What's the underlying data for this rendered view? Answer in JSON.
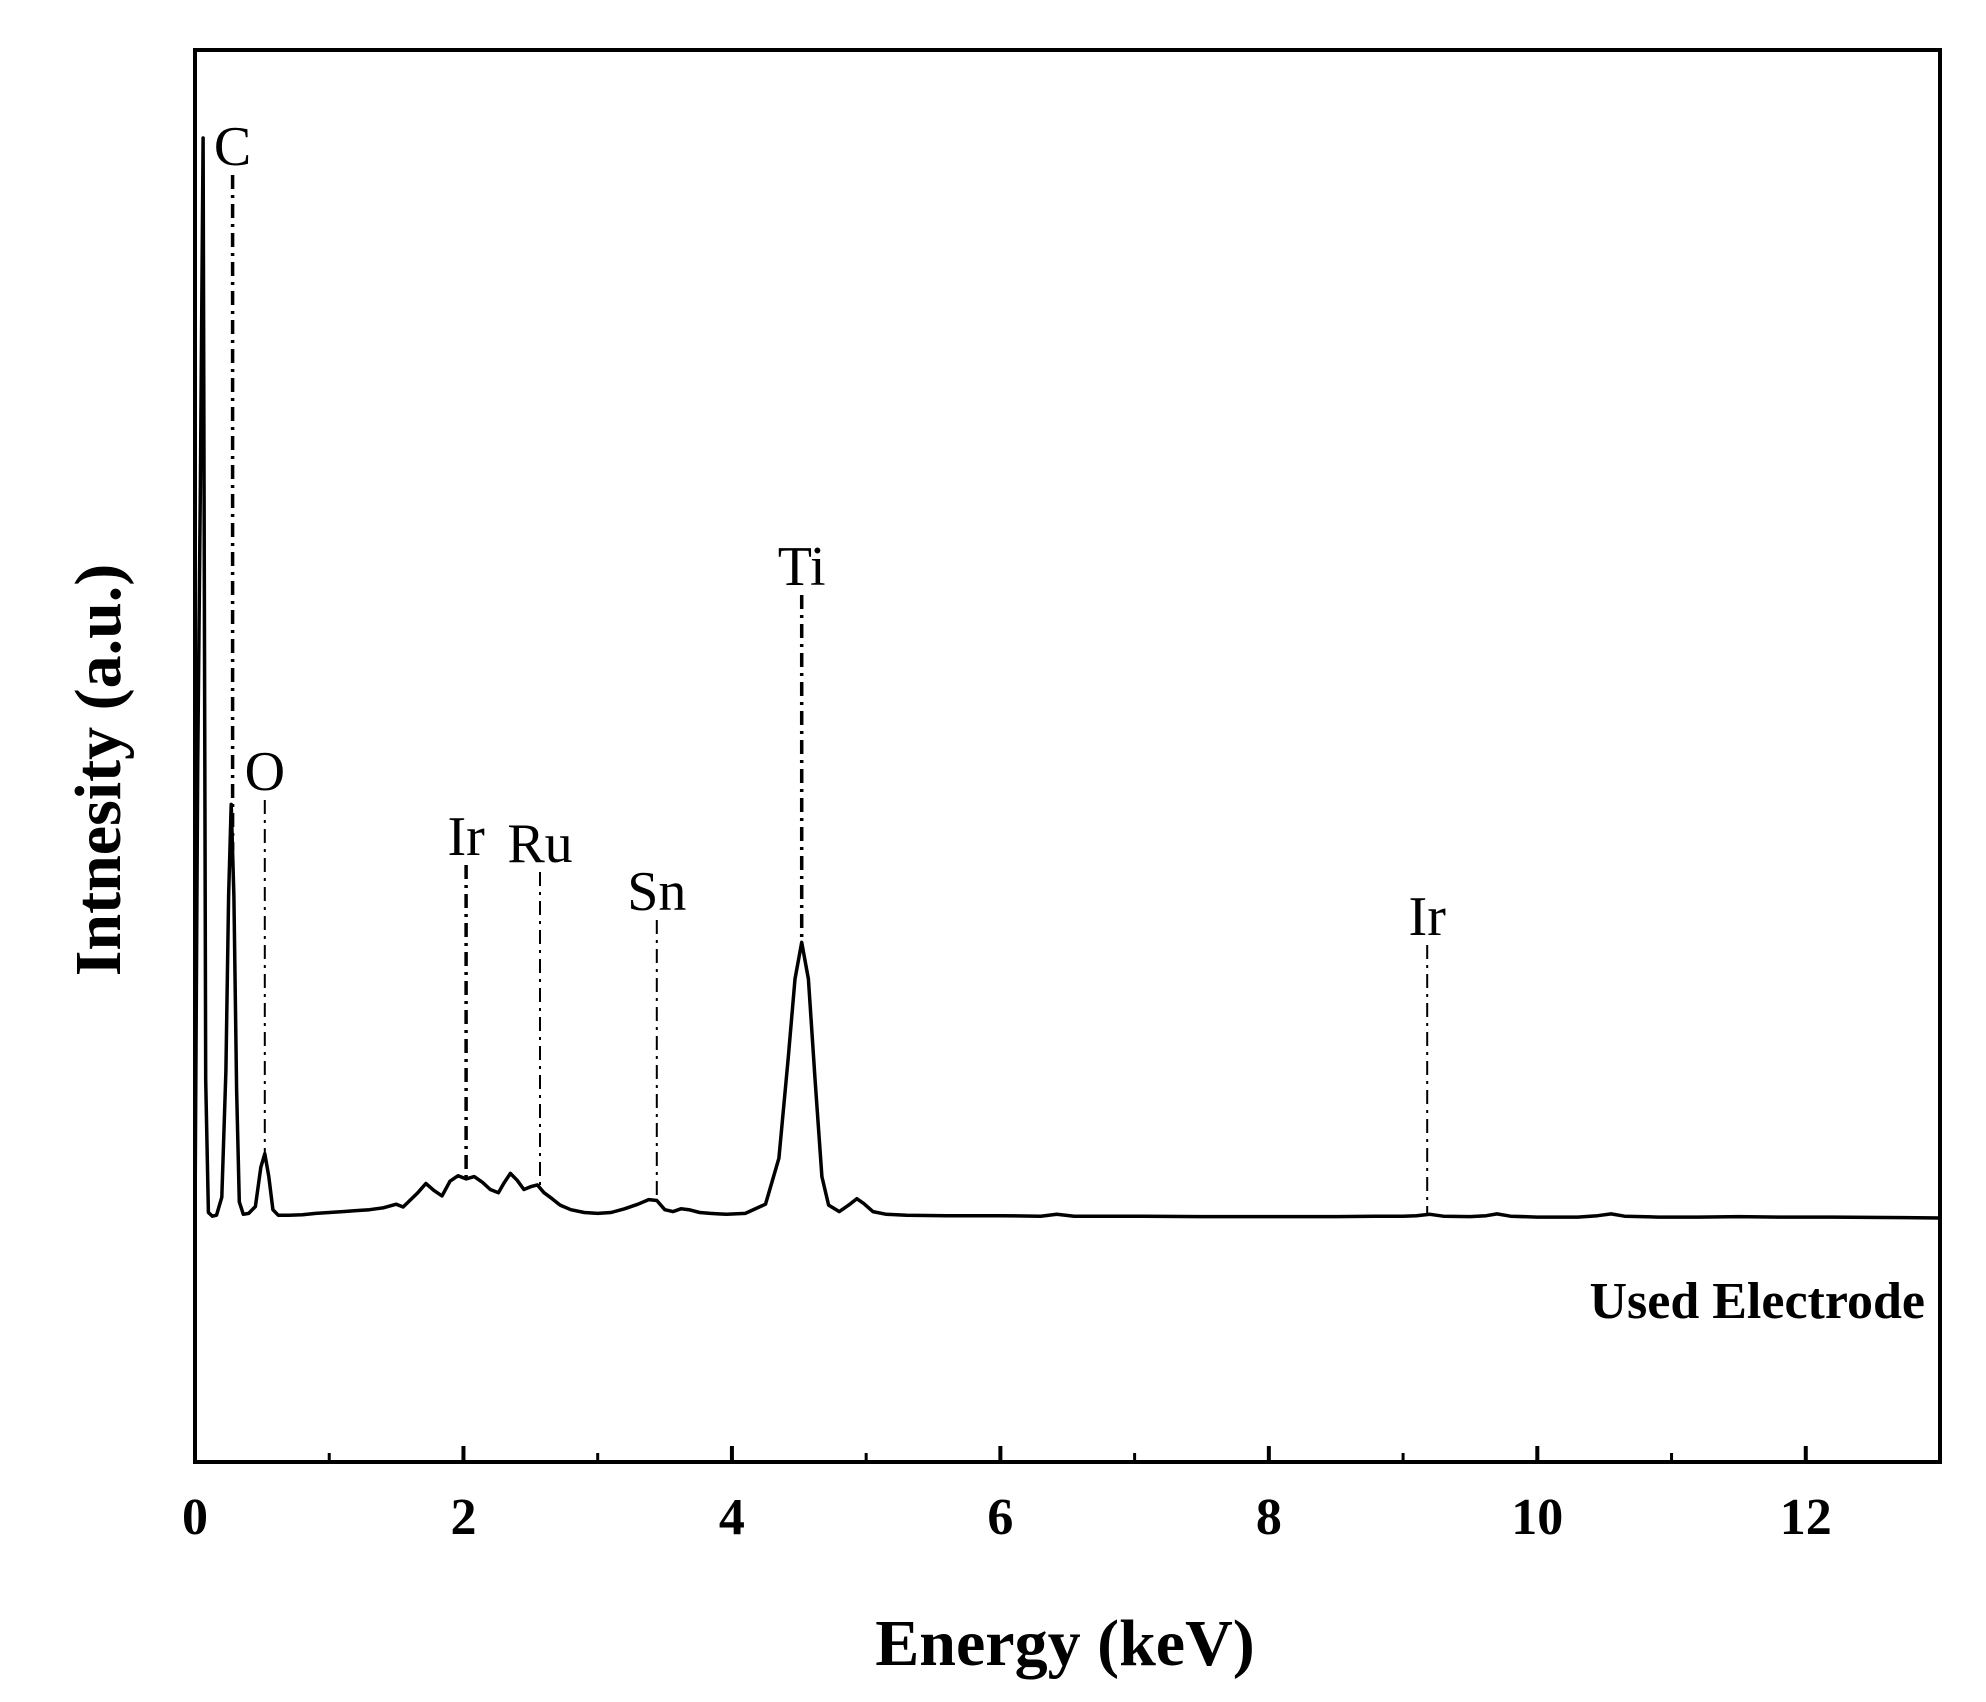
{
  "chart_data": {
    "type": "line",
    "xlabel": "Energy (keV)",
    "ylabel": "Intnesity (a.u.)",
    "xlim": [
      0,
      13
    ],
    "xticks": [
      0,
      2,
      4,
      6,
      8,
      10,
      12
    ],
    "xticks_minor": [
      1,
      3,
      5,
      7,
      9,
      11,
      13
    ],
    "yticks": [],
    "grid": false,
    "colors": {
      "line": "#000000",
      "axes": "#000000",
      "background": "#ffffff"
    },
    "series": [
      {
        "x": [
          0.0,
          0.02,
          0.04,
          0.06,
          0.08,
          0.1,
          0.13,
          0.16,
          0.2,
          0.23,
          0.25,
          0.27,
          0.29,
          0.31,
          0.33,
          0.36,
          0.4,
          0.45,
          0.49,
          0.52,
          0.55,
          0.58,
          0.62,
          0.7,
          0.8,
          0.9,
          1.0,
          1.1,
          1.2,
          1.3,
          1.4,
          1.5,
          1.55,
          1.6,
          1.66,
          1.72,
          1.78,
          1.84,
          1.9,
          1.96,
          2.02,
          2.08,
          2.14,
          2.2,
          2.26,
          2.3,
          2.35,
          2.4,
          2.45,
          2.5,
          2.55,
          2.6,
          2.66,
          2.72,
          2.8,
          2.9,
          3.0,
          3.1,
          3.2,
          3.3,
          3.38,
          3.44,
          3.5,
          3.56,
          3.62,
          3.68,
          3.76,
          3.84,
          3.9,
          3.96,
          4.1,
          4.25,
          4.35,
          4.42,
          4.47,
          4.52,
          4.57,
          4.62,
          4.67,
          4.72,
          4.8,
          4.87,
          4.93,
          4.98,
          5.05,
          5.15,
          5.3,
          5.6,
          6.0,
          6.3,
          6.42,
          6.55,
          7.0,
          7.5,
          8.0,
          8.5,
          8.8,
          9.0,
          9.1,
          9.2,
          9.3,
          9.5,
          9.62,
          9.7,
          9.8,
          10.0,
          10.3,
          10.45,
          10.55,
          10.65,
          10.9,
          11.2,
          11.5,
          11.8,
          12.2,
          12.6,
          13.0
        ],
        "y": [
          0,
          980,
          1600,
          2350,
          300,
          12,
          4,
          6,
          45,
          320,
          700,
          900,
          700,
          280,
          35,
          8,
          10,
          25,
          110,
          140,
          90,
          18,
          6,
          6,
          7,
          10,
          12,
          14,
          16,
          18,
          22,
          30,
          24,
          38,
          55,
          75,
          60,
          48,
          80,
          92,
          85,
          90,
          78,
          62,
          55,
          75,
          97,
          82,
          62,
          68,
          72,
          55,
          42,
          28,
          18,
          12,
          10,
          12,
          20,
          30,
          40,
          38,
          18,
          14,
          20,
          18,
          12,
          10,
          9,
          8,
          10,
          30,
          130,
          350,
          520,
          600,
          520,
          300,
          90,
          28,
          14,
          28,
          42,
          32,
          14,
          8,
          6,
          5,
          5,
          4,
          8,
          4,
          4,
          3,
          3,
          3,
          4,
          4,
          5,
          8,
          4,
          3,
          5,
          9,
          4,
          2,
          2,
          5,
          9,
          4,
          2,
          2,
          3,
          2,
          2,
          1,
          0
        ]
      }
    ],
    "peak_labels": [
      {
        "text": "C",
        "x": 0.28
      },
      {
        "text": "O",
        "x": 0.52
      },
      {
        "text": "Ir",
        "x": 2.02
      },
      {
        "text": "Ru",
        "x": 2.57
      },
      {
        "text": "Sn",
        "x": 3.44
      },
      {
        "text": "Ti",
        "x": 4.52
      },
      {
        "text": "Ir",
        "x": 9.18
      }
    ],
    "annotations": [
      "Used Electrode"
    ]
  }
}
